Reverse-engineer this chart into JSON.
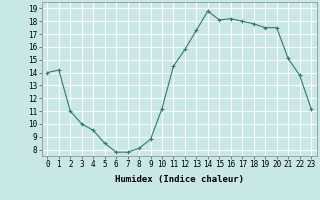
{
  "x": [
    0,
    1,
    2,
    3,
    4,
    5,
    6,
    7,
    8,
    9,
    10,
    11,
    12,
    13,
    14,
    15,
    16,
    17,
    18,
    19,
    20,
    21,
    22,
    23
  ],
  "y": [
    14,
    14.2,
    11,
    10,
    9.5,
    8.5,
    7.8,
    7.8,
    8.1,
    8.8,
    11.2,
    14.5,
    15.8,
    17.3,
    18.8,
    18.1,
    18.2,
    18.0,
    17.8,
    17.5,
    17.5,
    15.1,
    13.8,
    11.2
  ],
  "line_color": "#2e7d6e",
  "marker": "+",
  "marker_color": "#2e7d6e",
  "bg_color": "#c8e8e8",
  "grid_color": "#ffffff",
  "xlabel": "Humidex (Indice chaleur)",
  "xlim": [
    -0.5,
    23.5
  ],
  "ylim": [
    7.5,
    19.5
  ],
  "yticks": [
    8,
    9,
    10,
    11,
    12,
    13,
    14,
    15,
    16,
    17,
    18,
    19
  ],
  "xticks": [
    0,
    1,
    2,
    3,
    4,
    5,
    6,
    7,
    8,
    9,
    10,
    11,
    12,
    13,
    14,
    15,
    16,
    17,
    18,
    19,
    20,
    21,
    22,
    23
  ],
  "label_fontsize": 6.5,
  "tick_fontsize": 5.5
}
